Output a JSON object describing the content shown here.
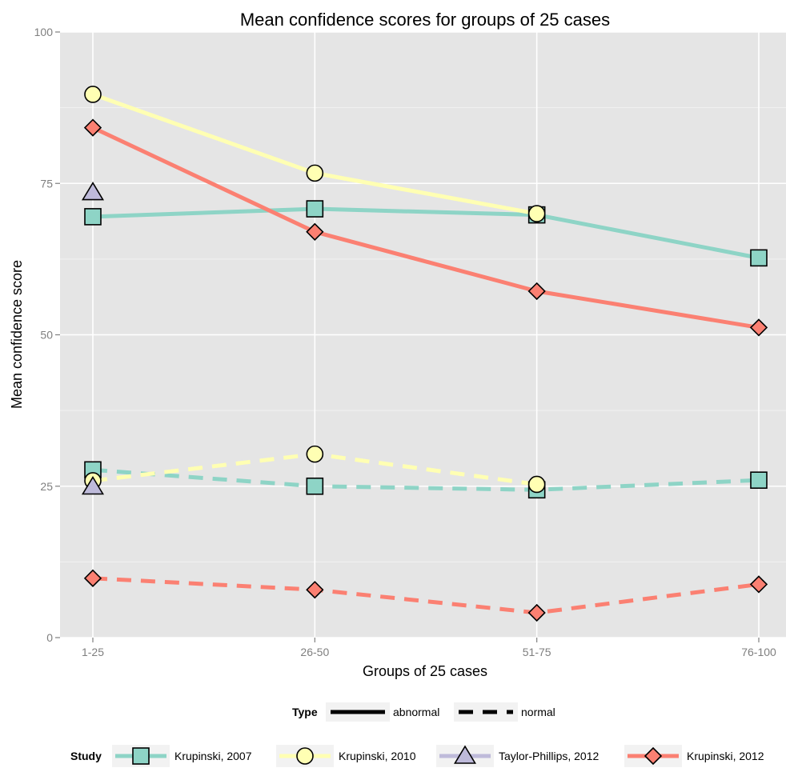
{
  "chart_data": {
    "type": "line",
    "title": "Mean confidence scores for groups of 25 cases",
    "xlabel": "Groups of 25 cases",
    "ylabel": "Mean confidence score",
    "categories": [
      "1-25",
      "26-50",
      "51-75",
      "76-100"
    ],
    "ylim": [
      0,
      100
    ],
    "yticks": [
      0,
      25,
      50,
      75,
      100
    ],
    "grid": true,
    "legend_position": "bottom",
    "type_legend": {
      "title": "Type",
      "entries": [
        {
          "label": "abnormal",
          "linetype": "solid"
        },
        {
          "label": "normal",
          "linetype": "dashed"
        }
      ]
    },
    "study_legend": {
      "title": "Study",
      "entries": [
        {
          "label": "Krupinski, 2007",
          "color": "#8ed4c6",
          "shape": "square"
        },
        {
          "label": "Krupinski, 2010",
          "color": "#ffffb3",
          "shape": "circle"
        },
        {
          "label": "Taylor-Phillips, 2012",
          "color": "#bebada",
          "shape": "triangle"
        },
        {
          "label": "Krupinski, 2012",
          "color": "#fb8072",
          "shape": "diamond"
        }
      ]
    },
    "series": [
      {
        "study": "Krupinski, 2007",
        "type": "abnormal",
        "color": "#8ed4c6",
        "shape": "square",
        "values": [
          69.5,
          70.8,
          69.8,
          62.7
        ]
      },
      {
        "study": "Krupinski, 2010",
        "type": "abnormal",
        "color": "#ffffb3",
        "shape": "circle",
        "values": [
          89.7,
          76.7,
          70.0,
          null
        ]
      },
      {
        "study": "Taylor-Phillips, 2012",
        "type": "abnormal",
        "color": "#bebada",
        "shape": "triangle",
        "values": [
          73.5,
          null,
          null,
          null
        ]
      },
      {
        "study": "Krupinski, 2012",
        "type": "abnormal",
        "color": "#fb8072",
        "shape": "diamond",
        "values": [
          84.2,
          67.0,
          57.2,
          51.2
        ]
      },
      {
        "study": "Krupinski, 2007",
        "type": "normal",
        "color": "#8ed4c6",
        "shape": "square",
        "values": [
          27.7,
          25.0,
          24.4,
          26.0
        ]
      },
      {
        "study": "Krupinski, 2010",
        "type": "normal",
        "color": "#ffffb3",
        "shape": "circle",
        "values": [
          25.9,
          30.3,
          25.3,
          null
        ]
      },
      {
        "study": "Taylor-Phillips, 2012",
        "type": "normal",
        "color": "#bebada",
        "shape": "triangle",
        "values": [
          24.9,
          null,
          null,
          null
        ]
      },
      {
        "study": "Krupinski, 2012",
        "type": "normal",
        "color": "#fb8072",
        "shape": "diamond",
        "values": [
          9.8,
          7.9,
          4.1,
          8.8
        ]
      }
    ]
  }
}
